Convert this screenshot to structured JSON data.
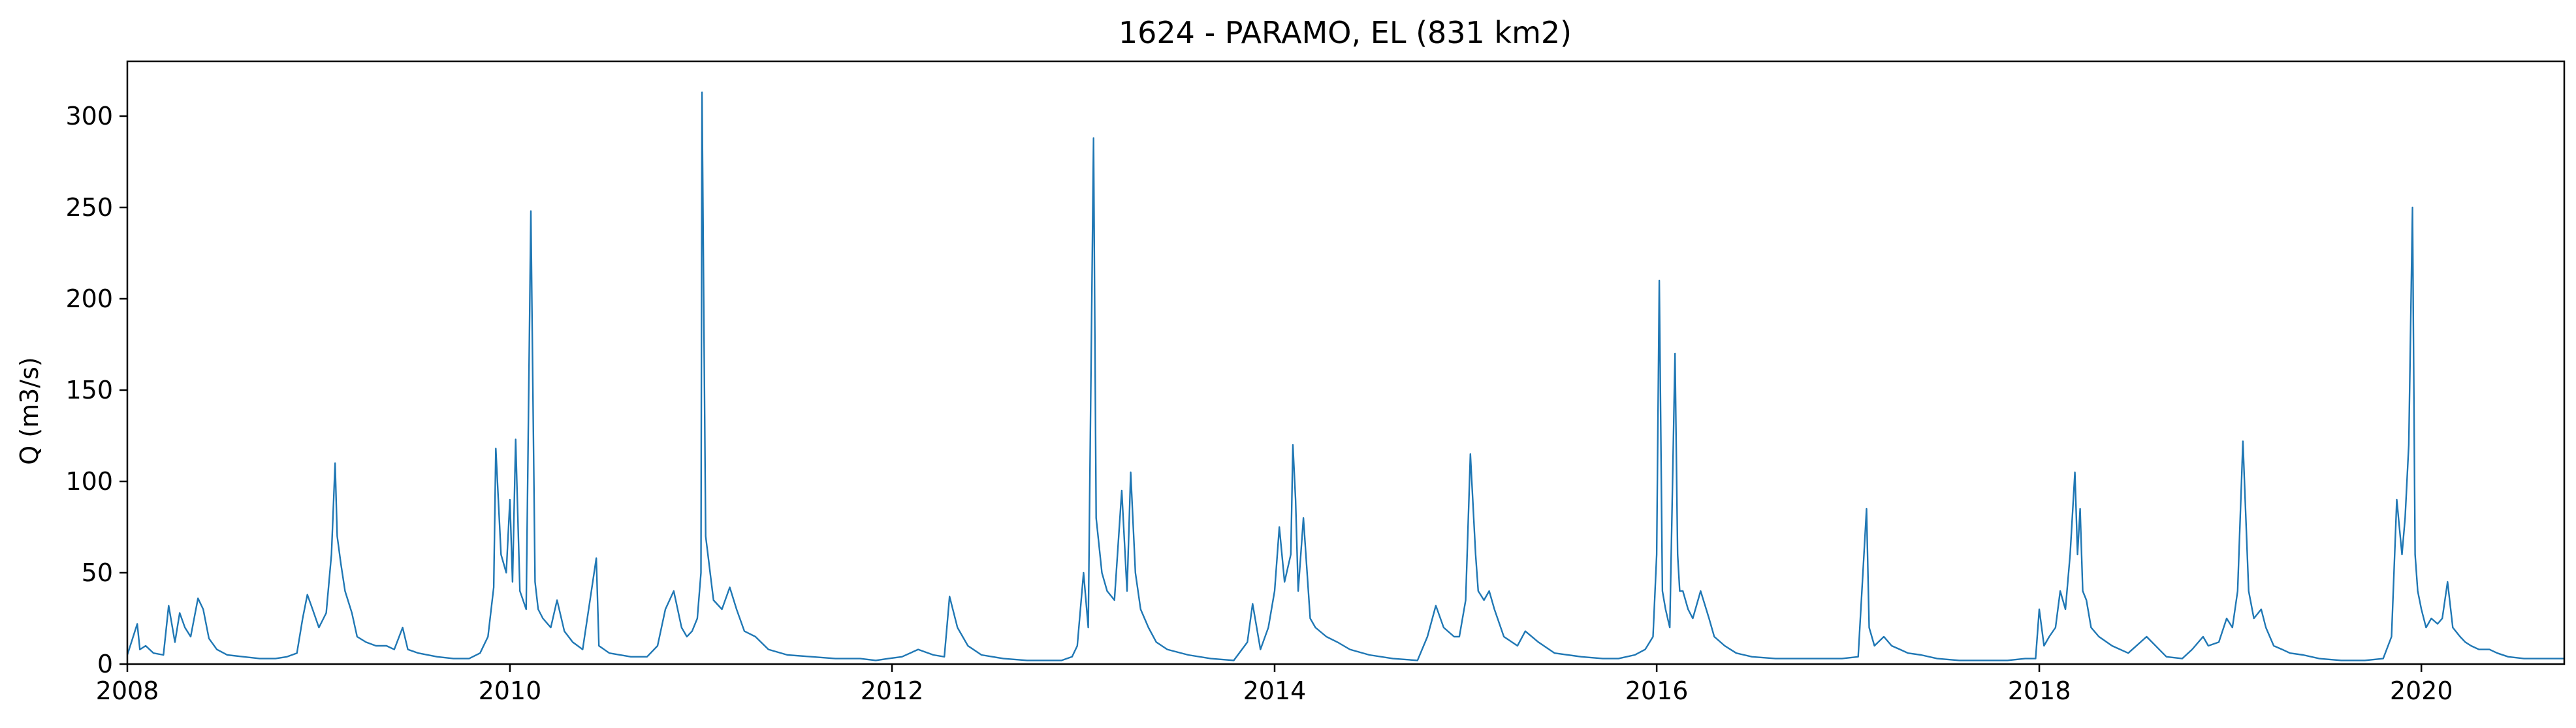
{
  "chart_data": {
    "type": "line",
    "title": "1624 - PARAMO, EL (831 km2)",
    "xlabel": "",
    "ylabel": "Q (m3/s)",
    "xlim": [
      "2008-01-01",
      "2020-09-30"
    ],
    "ylim": [
      0,
      330
    ],
    "x_ticks": [
      "2008",
      "2010",
      "2012",
      "2014",
      "2016",
      "2018",
      "2020"
    ],
    "y_ticks": [
      0,
      50,
      100,
      150,
      200,
      250,
      300
    ],
    "grid": false,
    "legend": "none",
    "color": "#1f77b4",
    "series": [
      {
        "x": [
          "2008-01-01",
          "2008-01-20",
          "2008-01-25",
          "2008-02-05",
          "2008-02-20",
          "2008-03-10",
          "2008-03-20",
          "2008-04-01",
          "2008-04-10",
          "2008-04-20",
          "2008-05-01",
          "2008-05-15",
          "2008-05-25",
          "2008-06-05",
          "2008-06-20",
          "2008-07-10",
          "2008-08-10",
          "2008-09-10",
          "2008-10-10",
          "2008-11-01",
          "2008-11-20",
          "2008-12-01",
          "2008-12-10",
          "2008-12-20",
          "2009-01-01",
          "2009-01-15",
          "2009-01-25",
          "2009-02-01",
          "2009-02-05",
          "2009-02-12",
          "2009-02-20",
          "2009-03-05",
          "2009-03-15",
          "2009-04-01",
          "2009-04-20",
          "2009-05-10",
          "2009-05-25",
          "2009-06-10",
          "2009-06-20",
          "2009-07-10",
          "2009-08-15",
          "2009-09-15",
          "2009-10-15",
          "2009-11-05",
          "2009-11-20",
          "2009-12-01",
          "2009-12-05",
          "2009-12-15",
          "2009-12-25",
          "2010-01-01",
          "2010-01-06",
          "2010-01-12",
          "2010-01-20",
          "2010-02-01",
          "2010-02-10",
          "2010-02-18",
          "2010-02-24",
          "2010-03-05",
          "2010-03-20",
          "2010-04-01",
          "2010-04-15",
          "2010-05-01",
          "2010-05-20",
          "2010-06-15",
          "2010-06-20",
          "2010-07-10",
          "2010-08-20",
          "2010-09-20",
          "2010-10-10",
          "2010-10-25",
          "2010-11-10",
          "2010-11-25",
          "2010-12-05",
          "2010-12-15",
          "2010-12-25",
          "2011-01-01",
          "2011-01-03",
          "2011-01-10",
          "2011-01-25",
          "2011-02-10",
          "2011-02-25",
          "2011-03-10",
          "2011-03-25",
          "2011-04-15",
          "2011-05-10",
          "2011-06-15",
          "2011-08-01",
          "2011-09-15",
          "2011-11-01",
          "2011-12-01",
          "2011-12-25",
          "2012-01-20",
          "2012-02-20",
          "2012-03-20",
          "2012-04-10",
          "2012-04-20",
          "2012-05-05",
          "2012-05-25",
          "2012-06-20",
          "2012-08-01",
          "2012-09-15",
          "2012-10-20",
          "2012-11-20",
          "2012-12-10",
          "2012-12-20",
          "2013-01-01",
          "2013-01-10",
          "2013-01-20",
          "2013-01-25",
          "2013-02-05",
          "2013-02-15",
          "2013-03-01",
          "2013-03-15",
          "2013-03-25",
          "2013-04-01",
          "2013-04-10",
          "2013-04-20",
          "2013-05-05",
          "2013-05-20",
          "2013-06-10",
          "2013-07-20",
          "2013-09-01",
          "2013-10-15",
          "2013-11-10",
          "2013-11-20",
          "2013-12-05",
          "2013-12-20",
          "2014-01-01",
          "2014-01-10",
          "2014-01-20",
          "2014-02-01",
          "2014-02-05",
          "2014-02-10",
          "2014-02-15",
          "2014-02-25",
          "2014-03-10",
          "2014-03-20",
          "2014-04-10",
          "2014-05-01",
          "2014-05-25",
          "2014-07-01",
          "2014-08-15",
          "2014-10-01",
          "2014-10-20",
          "2014-11-05",
          "2014-11-20",
          "2014-12-10",
          "2014-12-20",
          "2015-01-01",
          "2015-01-10",
          "2015-01-20",
          "2015-01-25",
          "2015-02-05",
          "2015-02-15",
          "2015-02-25",
          "2015-03-15",
          "2015-04-10",
          "2015-04-25",
          "2015-05-20",
          "2015-06-20",
          "2015-08-10",
          "2015-09-20",
          "2015-10-20",
          "2015-11-20",
          "2015-12-10",
          "2015-12-25",
          "2016-01-01",
          "2016-01-06",
          "2016-01-12",
          "2016-01-18",
          "2016-01-26",
          "2016-02-05",
          "2016-02-10",
          "2016-02-14",
          "2016-02-20",
          "2016-03-01",
          "2016-03-10",
          "2016-03-25",
          "2016-04-10",
          "2016-04-20",
          "2016-05-10",
          "2016-06-01",
          "2016-07-01",
          "2016-08-15",
          "2016-10-01",
          "2016-11-15",
          "2016-12-20",
          "2017-01-20",
          "2017-02-05",
          "2017-02-10",
          "2017-02-20",
          "2017-03-10",
          "2017-03-25",
          "2017-04-10",
          "2017-04-25",
          "2017-05-20",
          "2017-06-20",
          "2017-08-01",
          "2017-09-15",
          "2017-11-01",
          "2017-12-05",
          "2017-12-25",
          "2018-01-01",
          "2018-01-10",
          "2018-01-20",
          "2018-02-01",
          "2018-02-10",
          "2018-02-20",
          "2018-03-01",
          "2018-03-10",
          "2018-03-15",
          "2018-03-20",
          "2018-03-25",
          "2018-04-01",
          "2018-04-10",
          "2018-04-25",
          "2018-05-20",
          "2018-06-20",
          "2018-07-25",
          "2018-09-01",
          "2018-10-01",
          "2018-10-20",
          "2018-11-10",
          "2018-11-20",
          "2018-12-10",
          "2018-12-25",
          "2019-01-05",
          "2019-01-15",
          "2019-01-25",
          "2019-02-05",
          "2019-02-15",
          "2019-03-01",
          "2019-03-10",
          "2019-03-25",
          "2019-04-10",
          "2019-04-25",
          "2019-05-20",
          "2019-06-20",
          "2019-08-01",
          "2019-09-15",
          "2019-10-20",
          "2019-11-05",
          "2019-11-15",
          "2019-11-25",
          "2019-12-01",
          "2019-12-08",
          "2019-12-15",
          "2019-12-20",
          "2019-12-25",
          "2020-01-01",
          "2020-01-10",
          "2020-01-20",
          "2020-02-01",
          "2020-02-10",
          "2020-02-20",
          "2020-03-01",
          "2020-03-15",
          "2020-03-25",
          "2020-04-05",
          "2020-04-20",
          "2020-05-10",
          "2020-05-25",
          "2020-06-15",
          "2020-07-15",
          "2020-08-15",
          "2020-09-30"
        ],
        "y": [
          5,
          22,
          8,
          10,
          6,
          5,
          32,
          12,
          28,
          20,
          15,
          36,
          30,
          14,
          8,
          5,
          4,
          3,
          3,
          4,
          6,
          25,
          38,
          30,
          20,
          28,
          60,
          110,
          70,
          55,
          40,
          28,
          15,
          12,
          10,
          10,
          8,
          20,
          8,
          6,
          4,
          3,
          3,
          6,
          15,
          42,
          118,
          60,
          50,
          90,
          45,
          123,
          40,
          30,
          248,
          45,
          30,
          25,
          20,
          35,
          18,
          12,
          8,
          58,
          10,
          6,
          4,
          4,
          10,
          30,
          40,
          20,
          15,
          18,
          25,
          50,
          313,
          70,
          35,
          30,
          42,
          30,
          18,
          15,
          8,
          5,
          4,
          3,
          3,
          2,
          3,
          4,
          8,
          5,
          4,
          37,
          20,
          10,
          5,
          3,
          2,
          2,
          2,
          4,
          10,
          50,
          20,
          288,
          80,
          50,
          40,
          35,
          95,
          40,
          105,
          50,
          30,
          20,
          12,
          8,
          5,
          3,
          2,
          12,
          33,
          8,
          20,
          40,
          75,
          45,
          60,
          120,
          90,
          40,
          80,
          25,
          20,
          15,
          12,
          8,
          5,
          3,
          2,
          15,
          32,
          20,
          15,
          15,
          35,
          115,
          60,
          40,
          35,
          40,
          30,
          15,
          10,
          18,
          12,
          6,
          4,
          3,
          3,
          5,
          8,
          15,
          60,
          210,
          40,
          30,
          20,
          170,
          60,
          40,
          40,
          30,
          25,
          40,
          25,
          15,
          10,
          6,
          4,
          3,
          3,
          3,
          3,
          4,
          85,
          20,
          10,
          15,
          10,
          8,
          6,
          5,
          3,
          2,
          2,
          2,
          3,
          3,
          30,
          10,
          15,
          20,
          40,
          30,
          60,
          105,
          60,
          85,
          40,
          35,
          20,
          15,
          10,
          6,
          15,
          4,
          3,
          8,
          15,
          10,
          12,
          25,
          20,
          40,
          122,
          40,
          25,
          30,
          20,
          10,
          8,
          6,
          5,
          3,
          2,
          2,
          3,
          15,
          90,
          60,
          80,
          120,
          250,
          60,
          40,
          30,
          20,
          25,
          22,
          25,
          45,
          20,
          15,
          12,
          10,
          8,
          8,
          6,
          4,
          3,
          3,
          3
        ]
      }
    ]
  }
}
